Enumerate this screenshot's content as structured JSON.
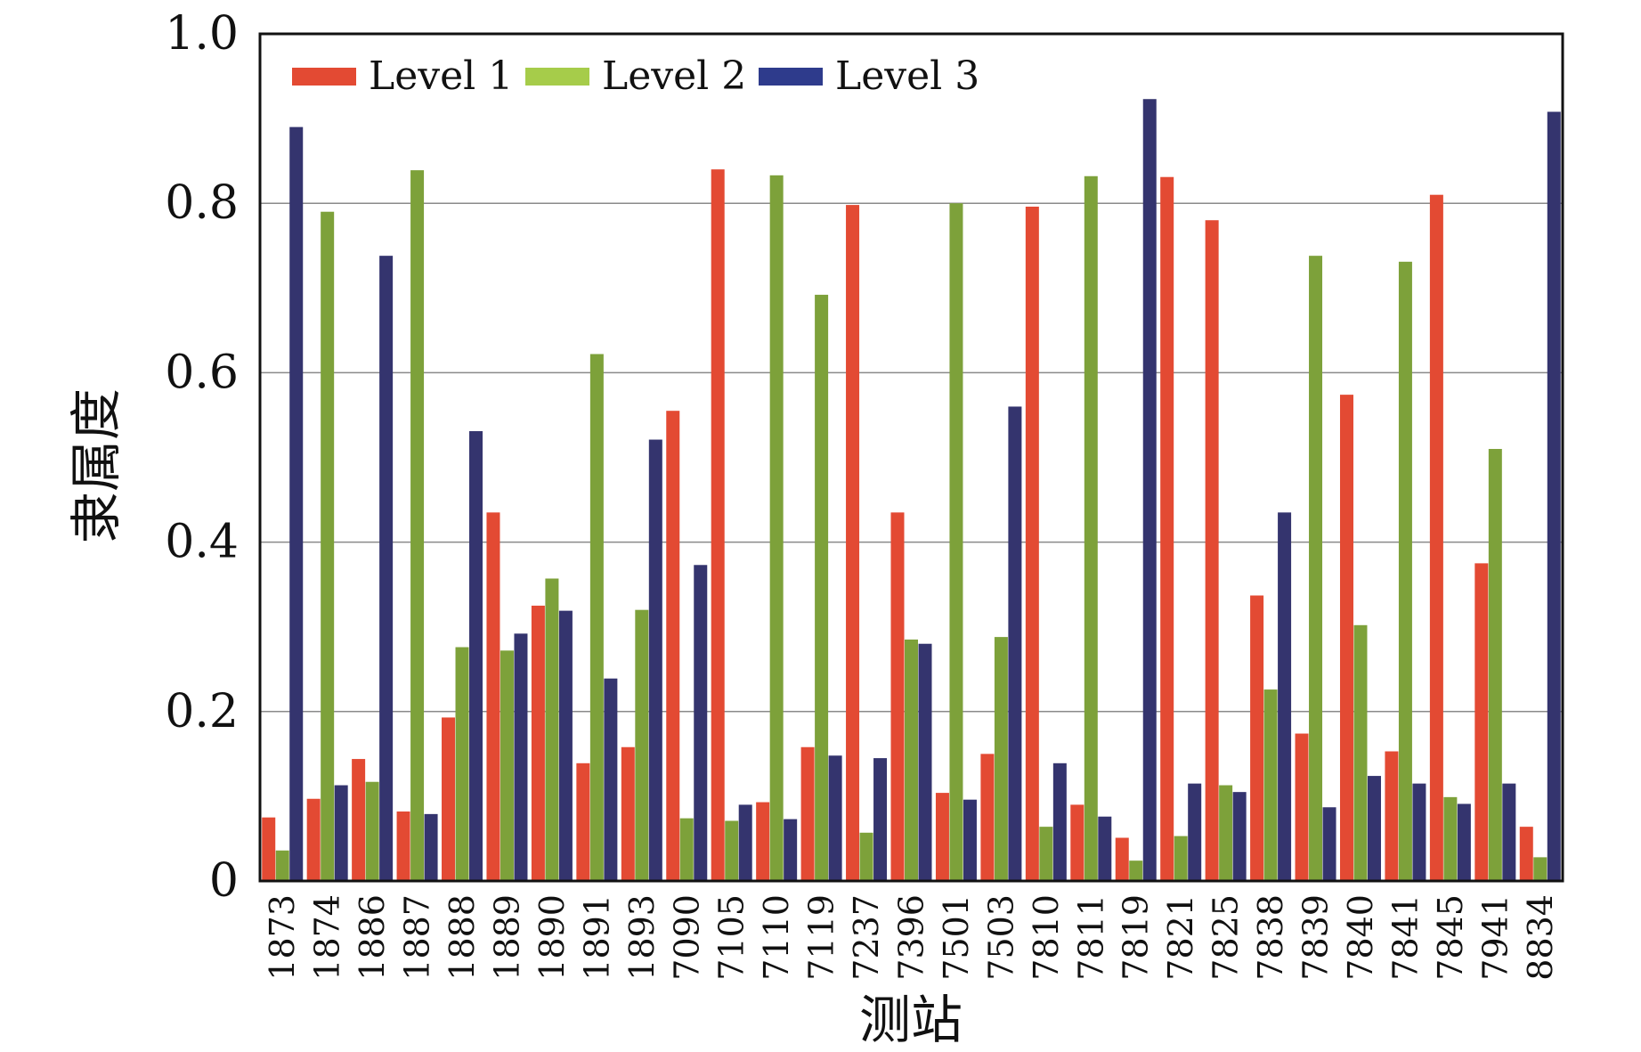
{
  "chart_data": {
    "type": "bar",
    "title": "",
    "xlabel": "测站",
    "ylabel": "隶属度",
    "ylim": [
      0,
      1.0
    ],
    "yticks": [
      "0",
      "0.2",
      "0.4",
      "0.6",
      "0.8",
      "1.0"
    ],
    "ytick_values": [
      0,
      0.2,
      0.4,
      0.6,
      0.8,
      1.0
    ],
    "grid": true,
    "legend_position": "top-left",
    "categories": [
      "1873",
      "1874",
      "1886",
      "1887",
      "1888",
      "1889",
      "1890",
      "1891",
      "1893",
      "7090",
      "7105",
      "7110",
      "7119",
      "7237",
      "7396",
      "7501",
      "7503",
      "7810",
      "7811",
      "7819",
      "7821",
      "7825",
      "7838",
      "7839",
      "7840",
      "7841",
      "7845",
      "7941",
      "8834"
    ],
    "series": [
      {
        "name": "Level 1",
        "color": "#e34a33",
        "values": [
          0.075,
          0.097,
          0.144,
          0.082,
          0.193,
          0.435,
          0.325,
          0.139,
          0.158,
          0.555,
          0.84,
          0.093,
          0.158,
          0.798,
          0.435,
          0.104,
          0.15,
          0.796,
          0.09,
          0.051,
          0.831,
          0.78,
          0.337,
          0.174,
          0.574,
          0.153,
          0.81,
          0.375,
          0.064
        ]
      },
      {
        "name": "Level 2",
        "color": "#7da13a",
        "values": [
          0.036,
          0.79,
          0.117,
          0.839,
          0.276,
          0.272,
          0.357,
          0.622,
          0.32,
          0.074,
          0.071,
          0.833,
          0.692,
          0.057,
          0.285,
          0.8,
          0.288,
          0.064,
          0.832,
          0.024,
          0.053,
          0.113,
          0.226,
          0.738,
          0.302,
          0.731,
          0.099,
          0.51,
          0.028
        ]
      },
      {
        "name": "Level 3",
        "color": "#34346e",
        "values": [
          0.89,
          0.113,
          0.738,
          0.079,
          0.531,
          0.292,
          0.319,
          0.239,
          0.521,
          0.373,
          0.09,
          0.073,
          0.148,
          0.145,
          0.28,
          0.096,
          0.56,
          0.139,
          0.076,
          0.923,
          0.115,
          0.105,
          0.435,
          0.087,
          0.124,
          0.115,
          0.091,
          0.115,
          0.908
        ]
      }
    ],
    "legend_swatch_colors": [
      "#e34a33",
      "#a6cc4a",
      "#2e3b8c"
    ]
  }
}
